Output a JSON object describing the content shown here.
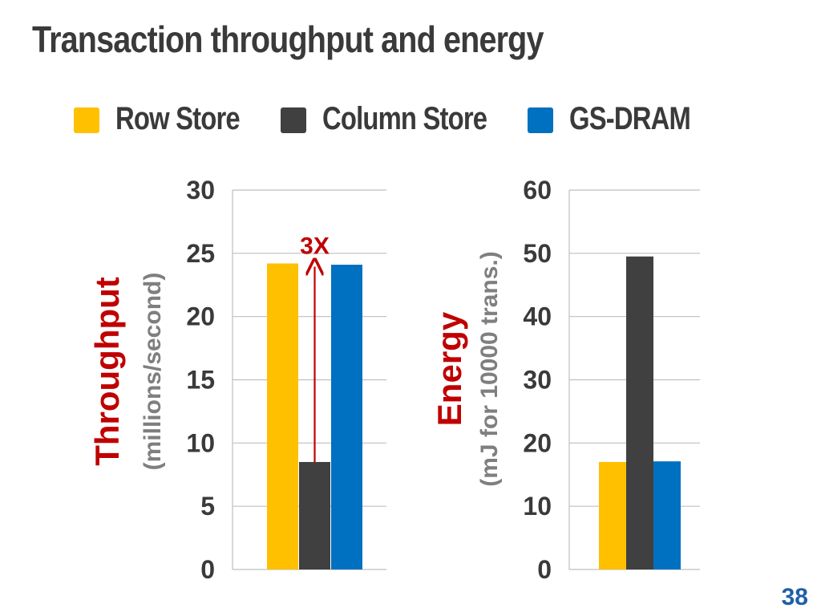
{
  "slide": {
    "title": "Transaction throughput and energy",
    "page_number": "38"
  },
  "legend": [
    {
      "label": "Row Store",
      "color": "#ffc000"
    },
    {
      "label": "Column Store",
      "color": "#404040"
    },
    {
      "label": "GS-DRAM",
      "color": "#0070c0"
    }
  ],
  "chart_data": [
    {
      "type": "bar",
      "categories": [
        "Row Store",
        "Column Store",
        "GS-DRAM"
      ],
      "values": [
        24.2,
        8.5,
        24.1
      ],
      "colors": [
        "#ffc000",
        "#404040",
        "#0070c0"
      ],
      "ylabel": "Throughput",
      "ylabel_units": "(millions/second)",
      "ylim": [
        0,
        30
      ],
      "yticks": [
        0,
        5,
        10,
        15,
        20,
        25,
        30
      ],
      "grid": true,
      "annotation": {
        "text": "3X",
        "from": 8.5,
        "to": 24.2
      }
    },
    {
      "type": "bar",
      "categories": [
        "Row Store",
        "Column Store",
        "GS-DRAM"
      ],
      "values": [
        17,
        49.5,
        17.1
      ],
      "colors": [
        "#ffc000",
        "#404040",
        "#0070c0"
      ],
      "ylabel": "Energy",
      "ylabel_units": "(mJ for 10000 trans.)",
      "ylim": [
        0,
        60
      ],
      "yticks": [
        0,
        10,
        20,
        30,
        40,
        50,
        60
      ],
      "grid": true
    }
  ]
}
